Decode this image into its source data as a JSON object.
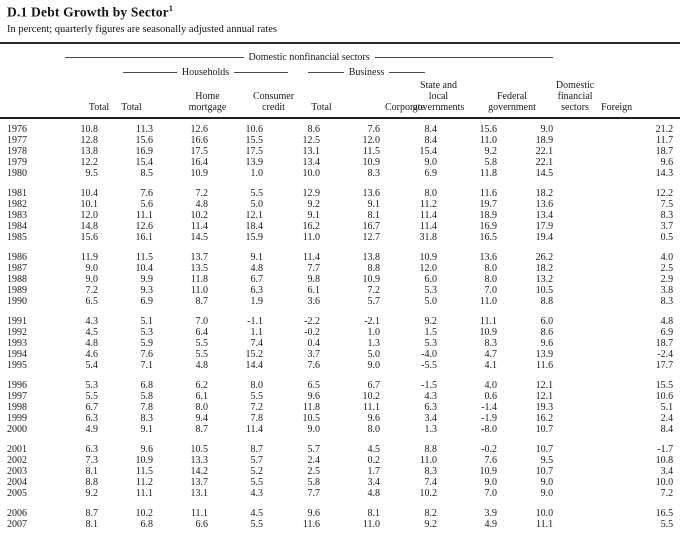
{
  "page": {
    "title": "D.1 Debt Growth by Sector",
    "title_footnote_marker": "1",
    "subtitle": "In percent; quarterly figures are seasonally adjusted annual rates"
  },
  "table": {
    "spanners": {
      "domestic_nonfinancial": "Domestic nonfinancial sectors",
      "households": "Households",
      "business": "Business"
    },
    "columns": [
      "Total",
      "Total",
      "Home\nmortgage",
      "Consumer\ncredit",
      "Total",
      "Corporate",
      "State and\nlocal\ngovernments",
      "Federal\ngovernment",
      "Domestic\nfinancial\nsectors",
      "Foreign"
    ],
    "row_groups": [
      [
        {
          "year": "1976",
          "values": [
            "10.8",
            "11.3",
            "12.6",
            "10.6",
            "8.6",
            "7.6",
            "8.4",
            "15.6",
            "9.0",
            "21.2"
          ]
        },
        {
          "year": "1977",
          "values": [
            "12.8",
            "15.6",
            "16.6",
            "15.5",
            "12.5",
            "12.0",
            "8.4",
            "11.0",
            "18.9",
            "11.7"
          ]
        },
        {
          "year": "1978",
          "values": [
            "13.8",
            "16.9",
            "17.5",
            "17.5",
            "13.1",
            "11.5",
            "15.4",
            "9.2",
            "22.1",
            "18.7"
          ]
        },
        {
          "year": "1979",
          "values": [
            "12.2",
            "15.4",
            "16.4",
            "13.9",
            "13.4",
            "10.9",
            "9.0",
            "5.8",
            "22.1",
            "9.6"
          ]
        },
        {
          "year": "1980",
          "values": [
            "9.5",
            "8.5",
            "10.9",
            "1.0",
            "10.0",
            "8.3",
            "6.9",
            "11.8",
            "14.5",
            "14.3"
          ]
        }
      ],
      [
        {
          "year": "1981",
          "values": [
            "10.4",
            "7.6",
            "7.2",
            "5.5",
            "12.9",
            "13.6",
            "8.0",
            "11.6",
            "18.2",
            "12.2"
          ]
        },
        {
          "year": "1982",
          "values": [
            "10.1",
            "5.6",
            "4.8",
            "5.0",
            "9.2",
            "9.1",
            "11.2",
            "19.7",
            "13.6",
            "7.5"
          ]
        },
        {
          "year": "1983",
          "values": [
            "12.0",
            "11.1",
            "10.2",
            "12.1",
            "9.1",
            "8.1",
            "11.4",
            "18.9",
            "13.4",
            "8.3"
          ]
        },
        {
          "year": "1984",
          "values": [
            "14.8",
            "12.6",
            "11.4",
            "18.4",
            "16.2",
            "16.7",
            "11.4",
            "16.9",
            "17.9",
            "3.7"
          ]
        },
        {
          "year": "1985",
          "values": [
            "15.6",
            "16.1",
            "14.5",
            "15.9",
            "11.0",
            "12.7",
            "31.8",
            "16.5",
            "19.4",
            "0.5"
          ]
        }
      ],
      [
        {
          "year": "1986",
          "values": [
            "11.9",
            "11.5",
            "13.7",
            "9.1",
            "11.4",
            "13.8",
            "10.9",
            "13.6",
            "26.2",
            "4.0"
          ]
        },
        {
          "year": "1987",
          "values": [
            "9.0",
            "10.4",
            "13.5",
            "4.8",
            "7.7",
            "8.8",
            "12.0",
            "8.0",
            "18.2",
            "2.5"
          ]
        },
        {
          "year": "1988",
          "values": [
            "9.0",
            "9.9",
            "11.8",
            "6.7",
            "9.8",
            "10.9",
            "6.0",
            "8.0",
            "13.2",
            "2.9"
          ]
        },
        {
          "year": "1989",
          "values": [
            "7.2",
            "9.3",
            "11.0",
            "6.3",
            "6.1",
            "7.2",
            "5.3",
            "7.0",
            "10.5",
            "3.8"
          ]
        },
        {
          "year": "1990",
          "values": [
            "6.5",
            "6.9",
            "8.7",
            "1.9",
            "3.6",
            "5.7",
            "5.0",
            "11.0",
            "8.8",
            "8.3"
          ]
        }
      ],
      [
        {
          "year": "1991",
          "values": [
            "4.3",
            "5.1",
            "7.0",
            "-1.1",
            "-2.2",
            "-2.1",
            "9.2",
            "11.1",
            "6.0",
            "4.8"
          ]
        },
        {
          "year": "1992",
          "values": [
            "4.5",
            "5.3",
            "6.4",
            "1.1",
            "-0.2",
            "1.0",
            "1.5",
            "10.9",
            "8.6",
            "6.9"
          ]
        },
        {
          "year": "1993",
          "values": [
            "4.8",
            "5.9",
            "5.5",
            "7.4",
            "0.4",
            "1.3",
            "5.3",
            "8.3",
            "9.6",
            "18.7"
          ]
        },
        {
          "year": "1994",
          "values": [
            "4.6",
            "7.6",
            "5.5",
            "15.2",
            "3.7",
            "5.0",
            "-4.0",
            "4.7",
            "13.9",
            "-2.4"
          ]
        },
        {
          "year": "1995",
          "values": [
            "5.4",
            "7.1",
            "4.8",
            "14.4",
            "7.6",
            "9.0",
            "-5.5",
            "4.1",
            "11.6",
            "17.7"
          ]
        }
      ],
      [
        {
          "year": "1996",
          "values": [
            "5.3",
            "6.8",
            "6.2",
            "8.0",
            "6.5",
            "6.7",
            "-1.5",
            "4.0",
            "12.1",
            "15.5"
          ]
        },
        {
          "year": "1997",
          "values": [
            "5.5",
            "5.8",
            "6.1",
            "5.5",
            "9.6",
            "10.2",
            "4.3",
            "0.6",
            "12.1",
            "10.6"
          ]
        },
        {
          "year": "1998",
          "values": [
            "6.7",
            "7.8",
            "8.0",
            "7.2",
            "11.8",
            "11.1",
            "6.3",
            "-1.4",
            "19.3",
            "5.1"
          ]
        },
        {
          "year": "1999",
          "values": [
            "6.3",
            "8.3",
            "9.4",
            "7.8",
            "10.5",
            "9.6",
            "3.4",
            "-1.9",
            "16.2",
            "2.4"
          ]
        },
        {
          "year": "2000",
          "values": [
            "4.9",
            "9.1",
            "8.7",
            "11.4",
            "9.0",
            "8.0",
            "1.3",
            "-8.0",
            "10.7",
            "8.4"
          ]
        }
      ],
      [
        {
          "year": "2001",
          "values": [
            "6.3",
            "9.6",
            "10.5",
            "8.7",
            "5.7",
            "4.5",
            "8.8",
            "-0.2",
            "10.7",
            "-1.7"
          ]
        },
        {
          "year": "2002",
          "values": [
            "7.3",
            "10.9",
            "13.3",
            "5.7",
            "2.4",
            "0.2",
            "11.0",
            "7.6",
            "9.5",
            "10.8"
          ]
        },
        {
          "year": "2003",
          "values": [
            "8.1",
            "11.5",
            "14.2",
            "5.2",
            "2.5",
            "1.7",
            "8.3",
            "10.9",
            "10.7",
            "3.4"
          ]
        },
        {
          "year": "2004",
          "values": [
            "8.8",
            "11.2",
            "13.7",
            "5.5",
            "5.8",
            "3.4",
            "7.4",
            "9.0",
            "9.0",
            "10.0"
          ]
        },
        {
          "year": "2005",
          "values": [
            "9.2",
            "11.1",
            "13.1",
            "4.3",
            "7.7",
            "4.8",
            "10.2",
            "7.0",
            "9.0",
            "7.2"
          ]
        }
      ],
      [
        {
          "year": "2006",
          "values": [
            "8.7",
            "10.2",
            "11.1",
            "4.5",
            "9.6",
            "8.1",
            "8.2",
            "3.9",
            "10.0",
            "16.5"
          ]
        },
        {
          "year": "2007",
          "values": [
            "8.1",
            "6.8",
            "6.6",
            "5.5",
            "11.6",
            "11.0",
            "9.2",
            "4.9",
            "11.1",
            "5.5"
          ]
        }
      ]
    ]
  }
}
